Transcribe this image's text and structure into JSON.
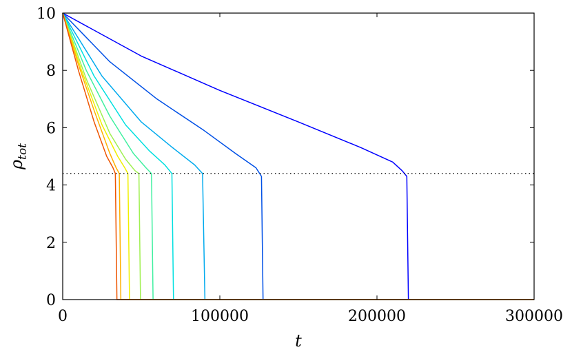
{
  "chart_data": {
    "type": "line",
    "xlabel": "t",
    "ylabel_main": "ρ",
    "ylabel_sub": "tot",
    "xlim": [
      0,
      300000
    ],
    "ylim": [
      0,
      10
    ],
    "xticks": [
      0,
      100000,
      200000,
      300000
    ],
    "xtick_labels": [
      "0",
      "100000",
      "200000",
      "300000"
    ],
    "yticks": [
      0,
      2,
      4,
      6,
      8,
      10
    ],
    "ytick_labels": [
      "0",
      "2",
      "4",
      "6",
      "8",
      "10"
    ],
    "grid": false,
    "legend": "none",
    "reference_line": {
      "y": 4.4,
      "style": "dotted",
      "color": "#000000"
    },
    "series": [
      {
        "color": "#0000ff",
        "values": [
          [
            0,
            10
          ],
          [
            50000,
            8.5
          ],
          [
            100000,
            7.3
          ],
          [
            150000,
            6.2
          ],
          [
            190000,
            5.3
          ],
          [
            210000,
            4.8
          ],
          [
            216000,
            4.5
          ],
          [
            219000,
            4.3
          ],
          [
            220000,
            0
          ],
          [
            300000,
            0
          ]
        ]
      },
      {
        "color": "#0050e6",
        "values": [
          [
            0,
            10
          ],
          [
            30000,
            8.3
          ],
          [
            60000,
            7.0
          ],
          [
            90000,
            5.9
          ],
          [
            110000,
            5.1
          ],
          [
            123000,
            4.6
          ],
          [
            126500,
            4.3
          ],
          [
            127500,
            0
          ],
          [
            300000,
            0
          ]
        ]
      },
      {
        "color": "#00aaee",
        "values": [
          [
            0,
            10
          ],
          [
            25000,
            7.8
          ],
          [
            50000,
            6.2
          ],
          [
            70000,
            5.3
          ],
          [
            84000,
            4.7
          ],
          [
            89000,
            4.4
          ],
          [
            90500,
            0
          ],
          [
            300000,
            0
          ]
        ]
      },
      {
        "color": "#00e0e0",
        "values": [
          [
            0,
            10
          ],
          [
            20000,
            7.8
          ],
          [
            40000,
            6.1
          ],
          [
            55000,
            5.2
          ],
          [
            65000,
            4.7
          ],
          [
            69500,
            4.4
          ],
          [
            70500,
            0
          ],
          [
            300000,
            0
          ]
        ]
      },
      {
        "color": "#40f0a0",
        "values": [
          [
            0,
            10
          ],
          [
            15000,
            8.0
          ],
          [
            30000,
            6.4
          ],
          [
            45000,
            5.1
          ],
          [
            53000,
            4.6
          ],
          [
            56500,
            4.4
          ],
          [
            57500,
            0
          ],
          [
            300000,
            0
          ]
        ]
      },
      {
        "color": "#a0f050",
        "values": [
          [
            0,
            10
          ],
          [
            15000,
            7.7
          ],
          [
            30000,
            5.8
          ],
          [
            40000,
            4.9
          ],
          [
            46000,
            4.5
          ],
          [
            48500,
            4.4
          ],
          [
            49500,
            0
          ],
          [
            300000,
            0
          ]
        ]
      },
      {
        "color": "#f0f000",
        "values": [
          [
            0,
            10
          ],
          [
            12000,
            8.0
          ],
          [
            25000,
            6.1
          ],
          [
            35000,
            5.0
          ],
          [
            39500,
            4.6
          ],
          [
            41500,
            4.4
          ],
          [
            42500,
            0
          ],
          [
            300000,
            0
          ]
        ]
      },
      {
        "color": "#ffb000",
        "values": [
          [
            0,
            10
          ],
          [
            10000,
            8.2
          ],
          [
            20000,
            6.6
          ],
          [
            30000,
            5.1
          ],
          [
            34000,
            4.6
          ],
          [
            36000,
            4.4
          ],
          [
            37000,
            0
          ],
          [
            300000,
            0
          ]
        ]
      },
      {
        "color": "#ee5500",
        "values": [
          [
            0,
            10
          ],
          [
            10000,
            8.0
          ],
          [
            20000,
            6.2
          ],
          [
            28000,
            5.0
          ],
          [
            32000,
            4.6
          ],
          [
            33500,
            4.4
          ],
          [
            34500,
            0
          ],
          [
            300000,
            0
          ]
        ]
      }
    ]
  }
}
